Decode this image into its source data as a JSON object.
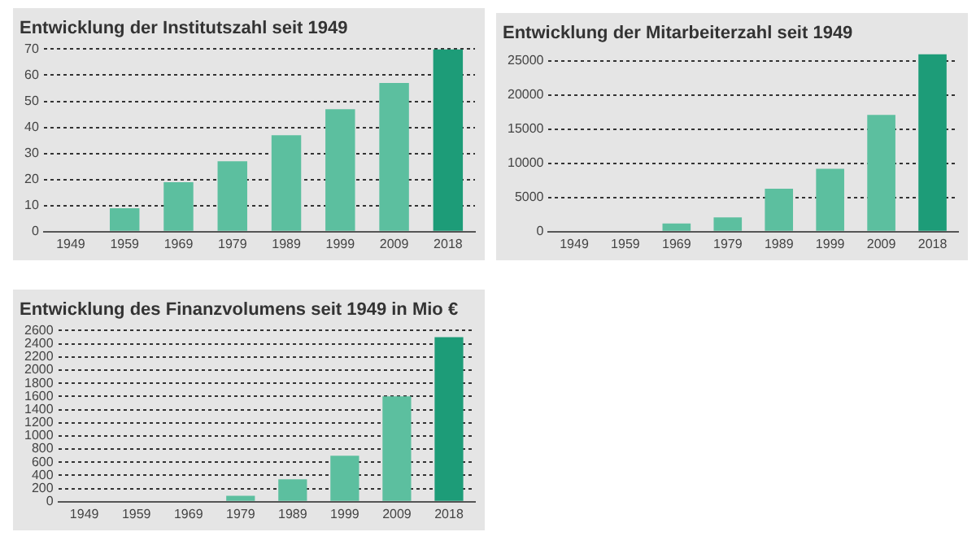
{
  "chart_data": [
    {
      "type": "bar",
      "title": "Entwicklung der Institutszahl seit 1949",
      "categories": [
        "1949",
        "1959",
        "1969",
        "1979",
        "1989",
        "1999",
        "2009",
        "2018"
      ],
      "values": [
        0,
        9,
        19,
        27,
        37,
        47,
        57,
        70
      ],
      "colors": [
        "#5cbf9f",
        "#5cbf9f",
        "#5cbf9f",
        "#5cbf9f",
        "#5cbf9f",
        "#5cbf9f",
        "#5cbf9f",
        "#1d9c78"
      ],
      "ylim": [
        0,
        70
      ],
      "yticks": [
        0,
        10,
        20,
        30,
        40,
        50,
        60,
        70
      ],
      "grid": "y",
      "legend": false
    },
    {
      "type": "bar",
      "title": "Entwicklung der Mitarbeiterzahl seit 1949",
      "categories": [
        "1949",
        "1959",
        "1969",
        "1979",
        "1989",
        "1999",
        "2009",
        "2018"
      ],
      "values": [
        0,
        0,
        1200,
        2100,
        6300,
        9200,
        17100,
        26000
      ],
      "colors": [
        "#5cbf9f",
        "#5cbf9f",
        "#5cbf9f",
        "#5cbf9f",
        "#5cbf9f",
        "#5cbf9f",
        "#5cbf9f",
        "#1d9c78"
      ],
      "ylim": [
        0,
        26000
      ],
      "yticks": [
        0,
        5000,
        10000,
        15000,
        20000,
        25000
      ],
      "grid": "y",
      "legend": false
    },
    {
      "type": "bar",
      "title": "Entwicklung des Finanzvolumens seit 1949 in Mio €",
      "categories": [
        "1949",
        "1959",
        "1969",
        "1979",
        "1989",
        "1999",
        "2009",
        "2018"
      ],
      "values": [
        0,
        0,
        0,
        90,
        340,
        700,
        1600,
        2500
      ],
      "colors": [
        "#5cbf9f",
        "#5cbf9f",
        "#5cbf9f",
        "#5cbf9f",
        "#5cbf9f",
        "#5cbf9f",
        "#5cbf9f",
        "#1d9c78"
      ],
      "ylim": [
        0,
        2600
      ],
      "yticks": [
        0,
        200,
        400,
        600,
        800,
        1000,
        1200,
        1400,
        1600,
        1800,
        2000,
        2200,
        2400,
        2600
      ],
      "grid": "y",
      "legend": false
    }
  ]
}
